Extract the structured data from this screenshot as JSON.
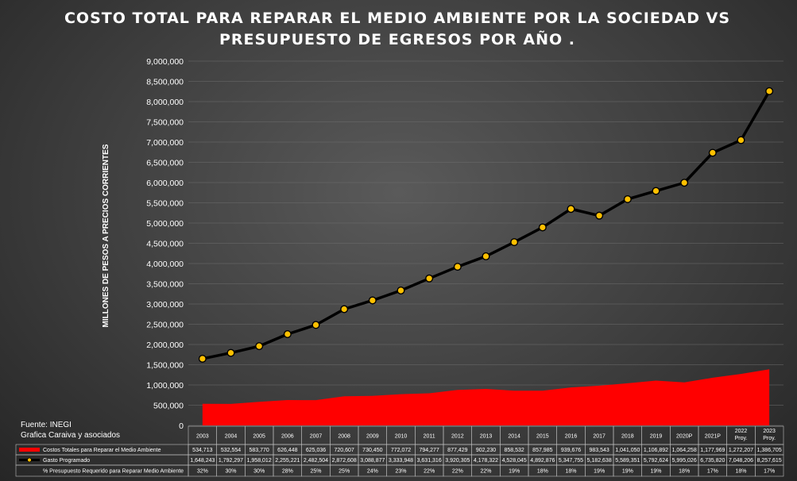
{
  "chart_data": {
    "type": "area",
    "title_lines": [
      "COSTO TOTAL PARA REPARAR EL MEDIO AMBIENTE POR LA SOCIEDAD VS",
      "PRESUPUESTO DE EGRESOS POR AÑO ."
    ],
    "ylabel": "MILLONES DE PESOS A PRECIOS CORRIENTES",
    "ylim": [
      0,
      9000000
    ],
    "yticks": [
      "0",
      "500,000",
      "1,000,000",
      "1,500,000",
      "2,000,000",
      "2,500,000",
      "3,000,000",
      "3,500,000",
      "4,000,000",
      "4,500,000",
      "5,000,000",
      "5,500,000",
      "6,000,000",
      "6,500,000",
      "7,000,000",
      "7,500,000",
      "8,000,000",
      "8,500,000",
      "9,000,000"
    ],
    "categories": [
      "2003",
      "2004",
      "2005",
      "2006",
      "2007",
      "2008",
      "2009",
      "2010",
      "2011",
      "2012",
      "2013",
      "2014",
      "2015",
      "2016",
      "2017",
      "2018",
      "2019",
      "2020P",
      "2021P",
      "2022 Proy.",
      "2023 Proy."
    ],
    "series": [
      {
        "name": "Costos Totales para Reparar el Medio Ambiente",
        "color": "#ff0000",
        "values": [
          534713,
          532554,
          583770,
          626448,
          625036,
          720607,
          730450,
          772072,
          794277,
          877429,
          902230,
          858532,
          857985,
          939676,
          983543,
          1041050,
          1106892,
          1064258,
          1177969,
          1272207,
          1386705
        ],
        "labels": [
          "534,713",
          "532,554",
          "583,770",
          "626,448",
          "625,036",
          "720,607",
          "730,450",
          "772,072",
          "794,277",
          "877,429",
          "902,230",
          "858,532",
          "857,985",
          "939,676",
          "983,543",
          "1,041,050",
          "1,106,892",
          "1,064,258",
          "1,177,969",
          "1,272,207",
          "1,386,705"
        ]
      },
      {
        "name": "Gasto Programado",
        "color": "#000000",
        "marker_color": "#ffc000",
        "values": [
          1648243,
          1792297,
          1958012,
          2255221,
          2482504,
          2872608,
          3088877,
          3333948,
          3631316,
          3920305,
          4178322,
          4528045,
          4892876,
          5347755,
          5182638,
          5589351,
          5792624,
          5995026,
          6735820,
          7048206,
          8257615
        ],
        "labels": [
          "1,648,243",
          "1,792,297",
          "1,958,012",
          "2,255,221",
          "2,482,504",
          "2,872,608",
          "3,088,877",
          "3,333,948",
          "3,631,316",
          "3,920,305",
          "4,178,322",
          "4,528,045",
          "4,892,876",
          "5,347,755",
          "5,182,638",
          "5,589,351",
          "5,792,624",
          "5,995,026",
          "6,735,820",
          "7,048,206",
          "8,257,615"
        ]
      }
    ],
    "percent_row": {
      "name": "% Presupuesto Requerido para Reparar Medio Ambiente",
      "labels": [
        "32%",
        "30%",
        "30%",
        "28%",
        "25%",
        "25%",
        "24%",
        "23%",
        "22%",
        "22%",
        "22%",
        "19%",
        "18%",
        "18%",
        "19%",
        "19%",
        "19%",
        "18%",
        "17%",
        "18%",
        "17%"
      ]
    },
    "grid": true,
    "legend": "data-table"
  },
  "source": {
    "line1": "Fuente: INEGI",
    "line2": "Grafica Caraiva y asociados"
  }
}
